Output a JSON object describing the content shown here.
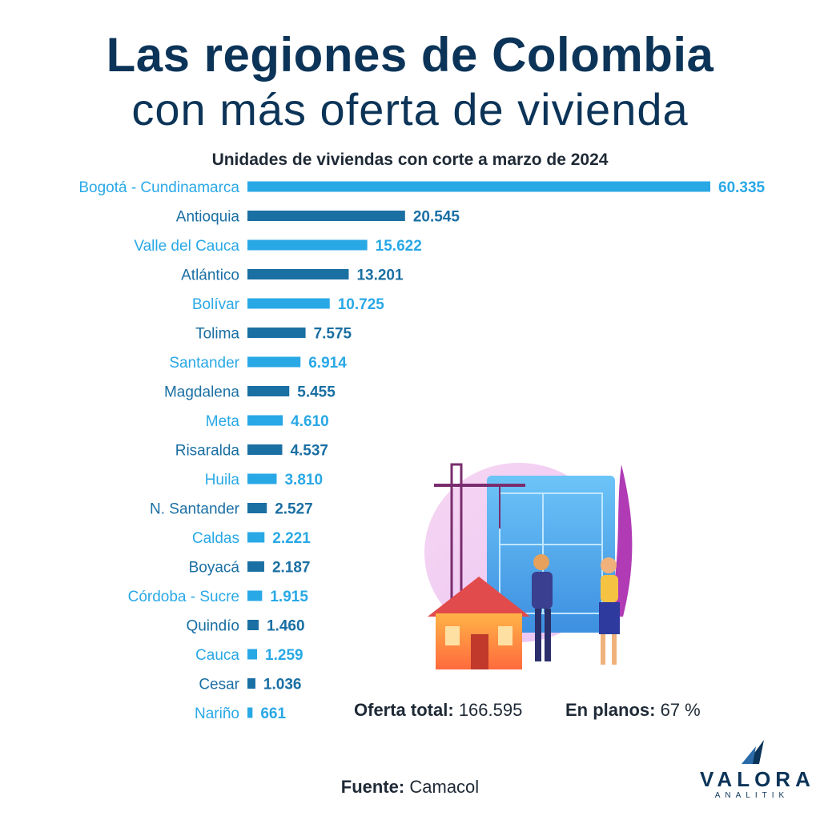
{
  "header": {
    "title_line1": "Las regiones de Colombia",
    "title_line2": "con más oferta de vivienda"
  },
  "chart_data": {
    "type": "bar",
    "orientation": "horizontal",
    "title": "Unidades de viviendas con corte a marzo de 2024",
    "categories": [
      "Bogotá - Cundinamarca",
      "Antioquia",
      "Valle del Cauca",
      "Atlántico",
      "Bolívar",
      "Tolima",
      "Santander",
      "Magdalena",
      "Meta",
      "Risaralda",
      "Huila",
      "N. Santander",
      "Caldas",
      "Boyacá",
      "Córdoba - Sucre",
      "Quindío",
      "Cauca",
      "Cesar",
      "Nariño"
    ],
    "values": [
      60335,
      20545,
      15622,
      13201,
      10725,
      7575,
      6914,
      5455,
      4610,
      4537,
      3810,
      2527,
      2221,
      2187,
      1915,
      1460,
      1259,
      1036,
      661
    ],
    "value_labels": [
      "60.335",
      "20.545",
      "15.622",
      "13.201",
      "10.725",
      "7.575",
      "6.914",
      "5.455",
      "4.610",
      "4.537",
      "3.810",
      "2.527",
      "2.221",
      "2.187",
      "1.915",
      "1.460",
      "1.259",
      "1.036",
      "661"
    ],
    "xlim": [
      0,
      60335
    ],
    "grid": false,
    "legend": "none",
    "colors": {
      "light": "#29a8e6",
      "dark": "#1a6fa3"
    }
  },
  "summary": {
    "total_label": "Oferta total:",
    "total_value": "166.595",
    "plans_label": "En planos:",
    "plans_value": "67 %"
  },
  "footer": {
    "source_label": "Fuente:",
    "source_value": "Camacol"
  },
  "logo": {
    "name": "VALORA",
    "sub": "ANALITIK"
  },
  "illustration": {
    "icon": "construction-architects-illustration"
  }
}
